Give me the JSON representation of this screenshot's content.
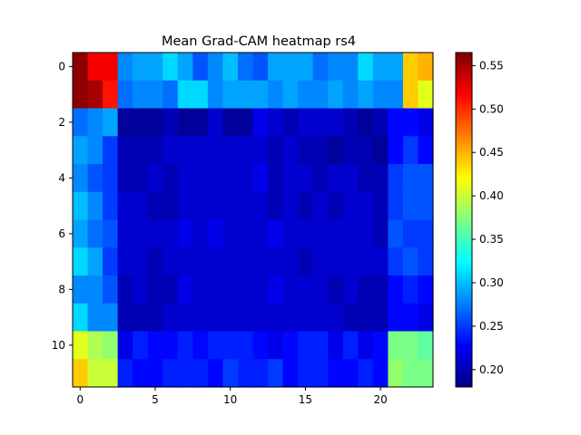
{
  "chart_data": {
    "type": "heatmap",
    "title": "Mean Grad-CAM heatmap rs4",
    "xlabel": "",
    "ylabel": "",
    "colormap": "jet",
    "rows": 12,
    "cols": 24,
    "xlim": [
      -0.5,
      23.5
    ],
    "ylim": [
      11.5,
      -0.5
    ],
    "xticks": [
      0,
      5,
      10,
      15,
      20
    ],
    "yticks": [
      0,
      2,
      4,
      6,
      8,
      10
    ],
    "colorbar": {
      "min": 0.18,
      "max": 0.565,
      "ticks": [
        0.2,
        0.25,
        0.3,
        0.35,
        0.4,
        0.45,
        0.5,
        0.55
      ]
    },
    "grid": false,
    "values": [
      [
        0.56,
        0.52,
        0.52,
        0.28,
        0.29,
        0.29,
        0.31,
        0.29,
        0.26,
        0.28,
        0.3,
        0.27,
        0.26,
        0.29,
        0.29,
        0.29,
        0.27,
        0.28,
        0.28,
        0.31,
        0.29,
        0.29,
        0.44,
        0.45
      ],
      [
        0.56,
        0.55,
        0.51,
        0.27,
        0.28,
        0.28,
        0.27,
        0.31,
        0.31,
        0.28,
        0.29,
        0.29,
        0.29,
        0.28,
        0.29,
        0.28,
        0.28,
        0.29,
        0.28,
        0.29,
        0.28,
        0.28,
        0.44,
        0.41
      ],
      [
        0.27,
        0.28,
        0.29,
        0.19,
        0.19,
        0.19,
        0.2,
        0.19,
        0.19,
        0.21,
        0.19,
        0.19,
        0.22,
        0.21,
        0.2,
        0.21,
        0.21,
        0.21,
        0.2,
        0.19,
        0.2,
        0.23,
        0.23,
        0.22
      ],
      [
        0.29,
        0.28,
        0.25,
        0.2,
        0.2,
        0.2,
        0.21,
        0.21,
        0.21,
        0.21,
        0.21,
        0.21,
        0.21,
        0.2,
        0.21,
        0.2,
        0.2,
        0.19,
        0.2,
        0.2,
        0.19,
        0.23,
        0.25,
        0.23
      ],
      [
        0.28,
        0.26,
        0.25,
        0.2,
        0.2,
        0.21,
        0.2,
        0.21,
        0.21,
        0.21,
        0.21,
        0.21,
        0.22,
        0.2,
        0.21,
        0.21,
        0.2,
        0.21,
        0.21,
        0.2,
        0.2,
        0.25,
        0.26,
        0.26
      ],
      [
        0.3,
        0.28,
        0.25,
        0.21,
        0.21,
        0.2,
        0.2,
        0.21,
        0.21,
        0.21,
        0.21,
        0.21,
        0.21,
        0.2,
        0.21,
        0.2,
        0.21,
        0.2,
        0.21,
        0.21,
        0.2,
        0.25,
        0.26,
        0.26
      ],
      [
        0.29,
        0.27,
        0.26,
        0.21,
        0.21,
        0.21,
        0.21,
        0.22,
        0.21,
        0.22,
        0.21,
        0.21,
        0.21,
        0.22,
        0.21,
        0.21,
        0.21,
        0.21,
        0.21,
        0.21,
        0.2,
        0.26,
        0.25,
        0.25
      ],
      [
        0.31,
        0.29,
        0.25,
        0.21,
        0.21,
        0.2,
        0.21,
        0.21,
        0.21,
        0.21,
        0.21,
        0.21,
        0.21,
        0.21,
        0.21,
        0.2,
        0.21,
        0.21,
        0.21,
        0.21,
        0.21,
        0.25,
        0.26,
        0.25
      ],
      [
        0.28,
        0.28,
        0.26,
        0.2,
        0.21,
        0.2,
        0.2,
        0.22,
        0.21,
        0.21,
        0.21,
        0.21,
        0.21,
        0.22,
        0.21,
        0.21,
        0.21,
        0.2,
        0.21,
        0.2,
        0.2,
        0.23,
        0.24,
        0.23
      ],
      [
        0.31,
        0.28,
        0.28,
        0.2,
        0.2,
        0.2,
        0.21,
        0.21,
        0.21,
        0.21,
        0.21,
        0.21,
        0.21,
        0.21,
        0.21,
        0.21,
        0.21,
        0.21,
        0.2,
        0.2,
        0.2,
        0.23,
        0.23,
        0.22
      ],
      [
        0.41,
        0.39,
        0.38,
        0.22,
        0.24,
        0.23,
        0.23,
        0.24,
        0.23,
        0.24,
        0.24,
        0.24,
        0.23,
        0.22,
        0.23,
        0.24,
        0.24,
        0.22,
        0.24,
        0.22,
        0.23,
        0.37,
        0.37,
        0.36
      ],
      [
        0.44,
        0.4,
        0.4,
        0.24,
        0.23,
        0.23,
        0.24,
        0.24,
        0.24,
        0.23,
        0.25,
        0.24,
        0.24,
        0.25,
        0.23,
        0.24,
        0.24,
        0.23,
        0.23,
        0.24,
        0.23,
        0.38,
        0.37,
        0.37
      ]
    ]
  }
}
